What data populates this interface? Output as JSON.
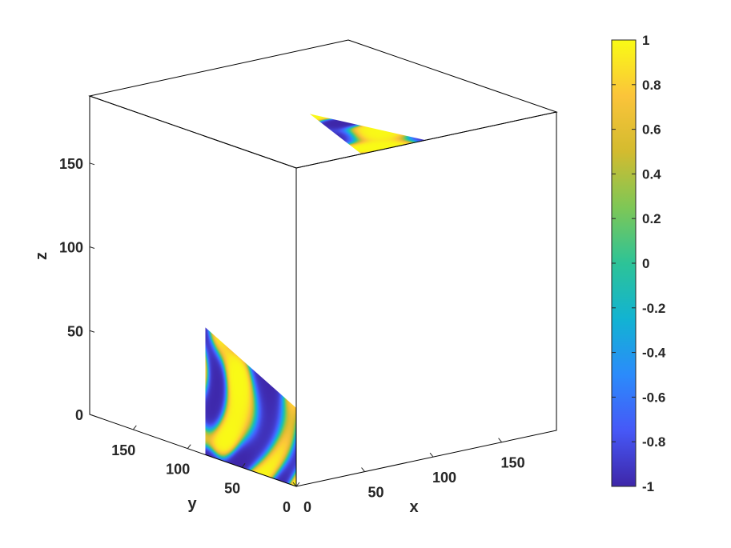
{
  "chart_data": {
    "type": "heatmap",
    "plot_style": "3D slice cube (surface field rendered on three visible cube faces)",
    "title": "",
    "xlabel": "x",
    "ylabel": "y",
    "zlabel": "z",
    "xlim": [
      0,
      190
    ],
    "ylim": [
      0,
      190
    ],
    "zlim": [
      0,
      190
    ],
    "xticks": [
      0,
      50,
      100,
      150
    ],
    "yticks": [
      0,
      50,
      100,
      150
    ],
    "zticks": [
      0,
      50,
      100,
      150
    ],
    "colorbar": {
      "limits": [
        -1,
        1
      ],
      "ticks": [
        1,
        0.8,
        0.6,
        0.4,
        0.2,
        0,
        -0.2,
        -0.4,
        -0.6,
        -0.8,
        -1
      ],
      "colormap": "parula",
      "stops": [
        "#3e26a8",
        "#4658f7",
        "#2b8bfb",
        "#12b3d2",
        "#2dc397",
        "#7ec756",
        "#d3bb2f",
        "#fbc43a",
        "#f9fb15"
      ],
      "placement": "right"
    },
    "field_description_values": "values range between -1 and 1; interference-like bands of yellow (≈+1) and dark blue (≈-1)"
  }
}
